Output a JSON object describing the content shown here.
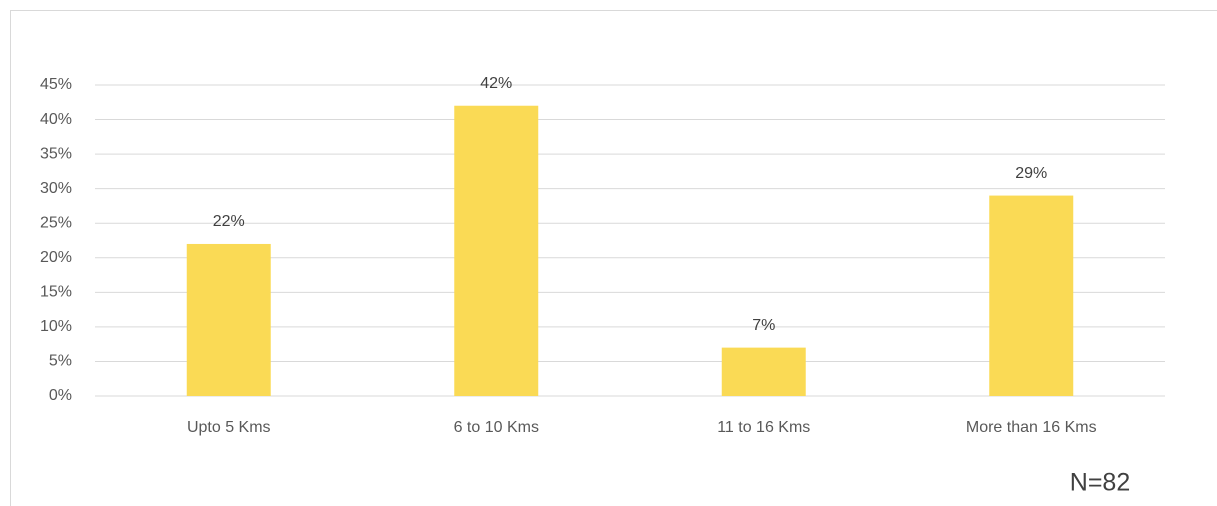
{
  "chart_data": {
    "type": "bar",
    "categories": [
      "Upto 5 Kms",
      "6 to 10 Kms",
      "11 to 16 Kms",
      "More than 16 Kms"
    ],
    "values": [
      22,
      42,
      7,
      29
    ],
    "value_labels": [
      "22%",
      "42%",
      "7%",
      "29%"
    ],
    "color": "#fada55",
    "ylim": [
      0,
      45
    ],
    "yticks": [
      {
        "value": 0,
        "label": "0%"
      },
      {
        "value": 5,
        "label": "5%"
      },
      {
        "value": 10,
        "label": "10%"
      },
      {
        "value": 15,
        "label": "15%"
      },
      {
        "value": 20,
        "label": "20%"
      },
      {
        "value": 25,
        "label": "25%"
      },
      {
        "value": 30,
        "label": "30%"
      },
      {
        "value": 35,
        "label": "35%"
      },
      {
        "value": 40,
        "label": "40%"
      },
      {
        "value": 45,
        "label": "45%"
      }
    ],
    "grid": true,
    "annotation": "N=82"
  }
}
